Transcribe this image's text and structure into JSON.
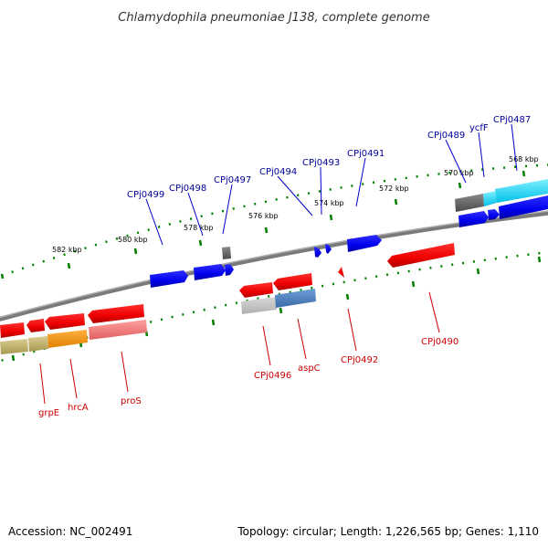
{
  "title": "Chlamydophila pneumoniae J138, complete genome",
  "footer": {
    "accession": "Accession: NC_002491",
    "summary": "Topology: circular; Length: 1,226,565 bp; Genes: 1,110"
  },
  "colors": {
    "forward": "#0000ff",
    "reverse": "#ff0000",
    "backbone": "#808080",
    "tick": "#008000",
    "forward_label": "#000099",
    "reverse_label": "#cc0000",
    "cyan": "#00d8ff",
    "steelblue": "#4f7fbf",
    "orange": "#ff9900",
    "olive": "#c0b060",
    "salmon": "#f08080",
    "grey": "#606060"
  },
  "ticks": [
    {
      "label": "582 kbp"
    },
    {
      "label": "580 kbp"
    },
    {
      "label": "578 kbp"
    },
    {
      "label": "576 kbp"
    },
    {
      "label": "574 kbp"
    },
    {
      "label": "572 kbp"
    },
    {
      "label": "570 kbp"
    },
    {
      "label": "568 kbp"
    }
  ],
  "forward_labels": [
    {
      "text": "CPj0499"
    },
    {
      "text": "CPj0498"
    },
    {
      "text": "CPj0497"
    },
    {
      "text": "CPj0494"
    },
    {
      "text": "CPj0493"
    },
    {
      "text": "CPj0491"
    },
    {
      "text": "CPj0489"
    },
    {
      "text": "ycfF"
    },
    {
      "text": "CPj0487"
    }
  ],
  "reverse_labels": [
    {
      "text": "grpE"
    },
    {
      "text": "hrcA"
    },
    {
      "text": "proS"
    },
    {
      "text": "CPj0496"
    },
    {
      "text": "aspC"
    },
    {
      "text": "CPj0492"
    },
    {
      "text": "CPj0490"
    }
  ]
}
